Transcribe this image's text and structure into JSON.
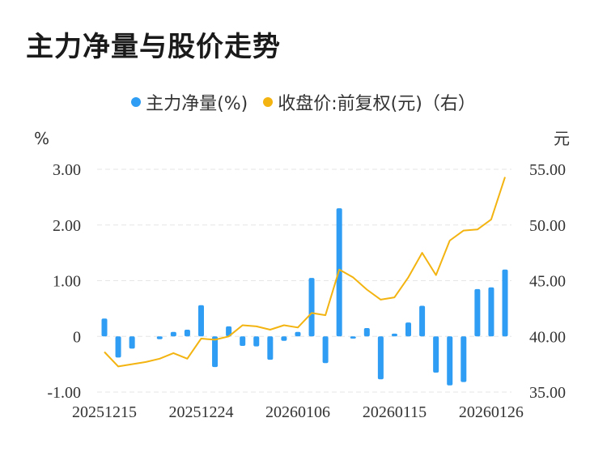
{
  "title": "主力净量与股价走势",
  "legend": {
    "series1": "主力净量(%)",
    "series2": "收盘价:前复权(元)（右）"
  },
  "colors": {
    "bar": "#2e9df3",
    "line": "#f3b411",
    "grid": "#e6e6e6"
  },
  "chart_data": {
    "type": "bar+line",
    "left_axis": {
      "unit": "%",
      "ylim": [
        -1,
        3
      ],
      "ticks": [
        3,
        2,
        1,
        0,
        -1
      ],
      "tick_labels": [
        "3.00",
        "2.00",
        "1.00",
        "0",
        "-1.00"
      ]
    },
    "right_axis": {
      "unit": "元",
      "ylim": [
        35,
        55
      ],
      "ticks": [
        55,
        50,
        45,
        40,
        35
      ],
      "tick_labels": [
        "55.00",
        "50.00",
        "45.00",
        "40.00",
        "35.00"
      ]
    },
    "x_tick_labels": [
      "20251215",
      "20251224",
      "20260106",
      "20260115",
      "20260126"
    ],
    "x_tick_indices": [
      0,
      7,
      14,
      21,
      28
    ],
    "series": [
      {
        "name": "主力净量(%)",
        "type": "bar",
        "axis": "left",
        "values": [
          0.32,
          -0.38,
          -0.22,
          0,
          -0.05,
          0.08,
          0.12,
          0.56,
          -0.55,
          0.18,
          -0.17,
          -0.18,
          -0.42,
          -0.08,
          0.08,
          1.05,
          -0.48,
          2.3,
          -0.04,
          0.15,
          -0.77,
          0.05,
          0.25,
          0.55,
          -0.65,
          -0.88,
          -0.82,
          0.85,
          0.88,
          1.2
        ]
      },
      {
        "name": "收盘价:前复权(元)（右）",
        "type": "line",
        "axis": "right",
        "values": [
          38.6,
          37.3,
          37.5,
          37.7,
          38.0,
          38.5,
          38.0,
          39.8,
          39.7,
          40.0,
          41.0,
          40.9,
          40.6,
          41.0,
          40.8,
          42.1,
          41.9,
          46.0,
          45.3,
          44.2,
          43.3,
          43.5,
          45.3,
          47.5,
          45.5,
          48.6,
          49.5,
          49.6,
          50.5,
          54.3
        ]
      }
    ]
  }
}
